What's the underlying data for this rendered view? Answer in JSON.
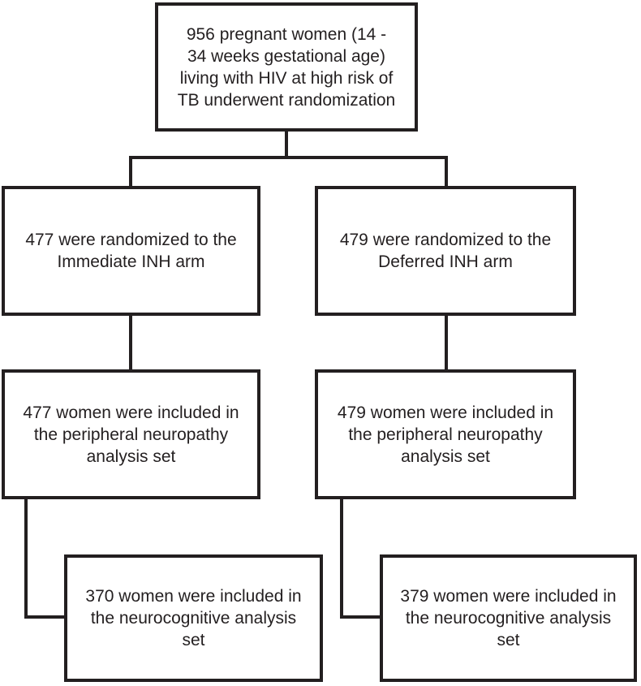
{
  "style": {
    "border_color": "#231f20",
    "text_color": "#231f20",
    "box_fill": "#ffffff",
    "page_background": "#ffffff"
  },
  "flowchart": {
    "enrollment": {
      "text": "956 pregnant women (14 -\n34 weeks gestational age)\nliving with HIV at high risk of\nTB underwent randomization"
    },
    "immediate_arm": {
      "text": "477 were randomized to the\nImmediate INH arm"
    },
    "deferred_arm": {
      "text": "479 were randomized to the\nDeferred INH arm"
    },
    "immediate_neuropathy": {
      "text": "477 women were included in\nthe peripheral neuropathy\nanalysis set"
    },
    "deferred_neuropathy": {
      "text": "479 women were included in\nthe peripheral neuropathy\nanalysis set"
    },
    "immediate_neurocognitive": {
      "text": "370 women were included in\nthe neurocognitive analysis\nset"
    },
    "deferred_neurocognitive": {
      "text": "379 women were included in\nthe neurocognitive analysis\nset"
    }
  }
}
